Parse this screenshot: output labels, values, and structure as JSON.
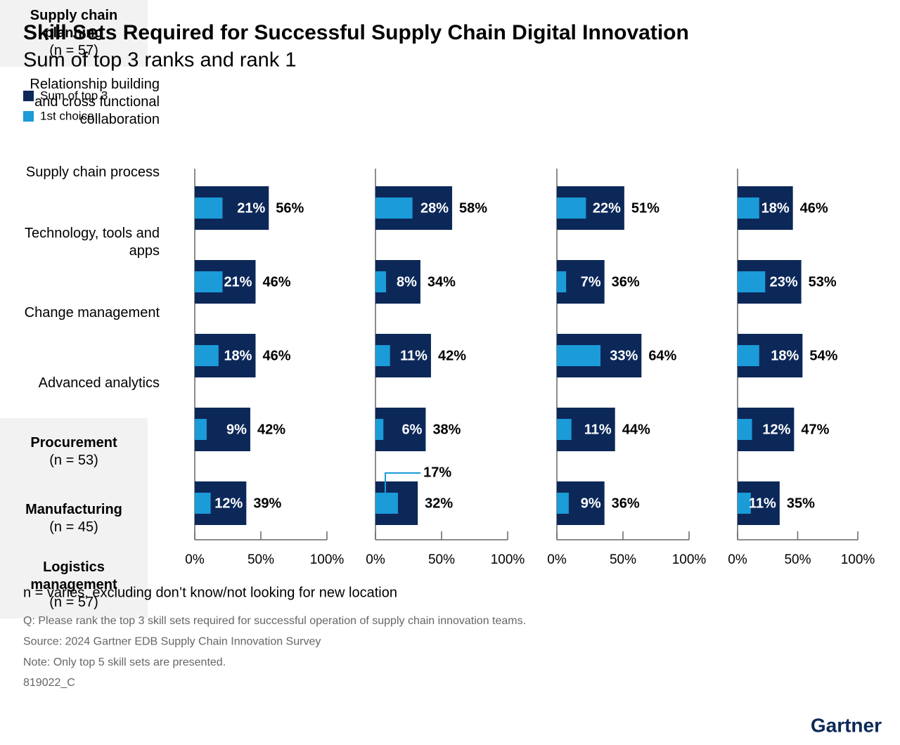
{
  "title": "Skill Sets Required for Successful Supply Chain Digital Innovation",
  "subtitle": "Sum of top 3 ranks and rank 1",
  "notes": [
    "n = varies, excluding don’t know/not looking for new location",
    "Q: Please rank the top 3 skill sets required for successful operation of supply chain innovation teams.",
    "Source: 2024 Gartner EDB Supply Chain Innovation Survey",
    "Note: Only top 5 skill sets are presented.",
    "819022_C"
  ],
  "logo": "Gartner",
  "chart_data": [
    {
      "type": "bar",
      "orientation": "horizontal",
      "title": "Supply chain planning",
      "subtitle": "(n = 57)",
      "categories": [
        "Relationship building and cross functional collaboration",
        "Supply chain process",
        "Technology, tools and apps",
        "Change management",
        "Advanced analytics"
      ],
      "series": [
        {
          "name": "Sum of top 3",
          "color": "#0c2859",
          "values": [
            56,
            46,
            46,
            42,
            39
          ],
          "value_labels": [
            "56%",
            "46%",
            "46%",
            "42%",
            "39%"
          ]
        },
        {
          "name": "1st choice",
          "color": "#1b9bd8",
          "values": [
            21,
            21,
            18,
            9,
            12
          ],
          "value_labels": [
            "21%",
            "21%",
            "18%",
            "9%",
            "12%"
          ]
        }
      ],
      "xlim": [
        0,
        100
      ],
      "xticks": [
        {
          "value": 0,
          "label": "0%"
        },
        {
          "value": 50,
          "label": "50%"
        },
        {
          "value": 100,
          "label": "100%"
        }
      ]
    },
    {
      "type": "bar",
      "orientation": "horizontal",
      "title": "Procurement",
      "subtitle": "(n = 53)",
      "series": [
        {
          "color": "#0c2859",
          "values": [
            58,
            34,
            42,
            38,
            32
          ],
          "value_labels": [
            "58%",
            "34%",
            "42%",
            "38%",
            "32%"
          ]
        },
        {
          "color": "#1b9bd8",
          "values": [
            28,
            8,
            11,
            6,
            17
          ],
          "value_labels": [
            "28%",
            "8%",
            "11%",
            "6%",
            "17%"
          ]
        }
      ],
      "xlim": [
        0,
        100
      ],
      "xticks": [
        {
          "value": 0,
          "label": "0%"
        },
        {
          "value": 50,
          "label": "50%"
        },
        {
          "value": 100,
          "label": "100%"
        }
      ]
    },
    {
      "type": "bar",
      "orientation": "horizontal",
      "title": "Manufacturing",
      "subtitle": "(n = 45)",
      "series": [
        {
          "color": "#0c2859",
          "values": [
            51,
            36,
            64,
            44,
            36
          ],
          "value_labels": [
            "51%",
            "36%",
            "64%",
            "44%",
            "36%"
          ]
        },
        {
          "color": "#1b9bd8",
          "values": [
            22,
            7,
            33,
            11,
            9
          ],
          "value_labels": [
            "22%",
            "7%",
            "33%",
            "11%",
            "9%"
          ]
        }
      ],
      "xlim": [
        0,
        100
      ],
      "xticks": [
        {
          "value": 0,
          "label": "0%"
        },
        {
          "value": 50,
          "label": "50%"
        },
        {
          "value": 100,
          "label": "100%"
        }
      ]
    },
    {
      "type": "bar",
      "orientation": "horizontal",
      "title": "Logistics management",
      "subtitle": "(n = 57)",
      "series": [
        {
          "color": "#0c2859",
          "values": [
            46,
            53,
            54,
            47,
            35
          ],
          "value_labels": [
            "46%",
            "53%",
            "54%",
            "47%",
            "35%"
          ]
        },
        {
          "color": "#1b9bd8",
          "values": [
            18,
            23,
            18,
            12,
            11
          ],
          "value_labels": [
            "18%",
            "23%",
            "18%",
            "12%",
            "11%"
          ]
        }
      ],
      "xlim": [
        0,
        100
      ],
      "xticks": [
        {
          "value": 0,
          "label": "0%"
        },
        {
          "value": 50,
          "label": "50%"
        },
        {
          "value": 100,
          "label": "100%"
        }
      ]
    }
  ]
}
